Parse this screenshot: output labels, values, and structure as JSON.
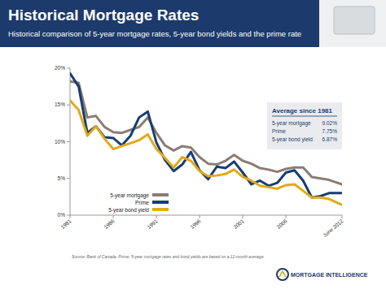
{
  "chart_data": {
    "type": "line",
    "title": "Historical Mortgage Rates",
    "subtitle": "Historical comparison of 5-year mortgage rates, 5-year bond yields and the prime rate",
    "source": "Source: Bank of Canada. Prime, 5-year mortgage rates and bond yields are based on a 12-month average.",
    "brand": "MORTGAGE INTELLIGENCE",
    "x": [
      1981,
      1982,
      1983,
      1984,
      1985,
      1986,
      1987,
      1988,
      1989,
      1990,
      1991,
      1992,
      1993,
      1994,
      1995,
      1996,
      1997,
      1998,
      1999,
      2000,
      2001,
      2002,
      2003,
      2004,
      2005,
      2006,
      2007,
      2008,
      2009,
      2010,
      2011,
      2012.5
    ],
    "series": [
      {
        "name": "5-year mortgage",
        "color": "#8b7d74",
        "values": [
          18.2,
          18.0,
          13.3,
          13.5,
          12.0,
          11.3,
          11.2,
          11.6,
          12.0,
          13.3,
          11.2,
          9.5,
          8.8,
          9.4,
          9.2,
          7.9,
          7.0,
          6.9,
          7.4,
          8.2,
          7.4,
          7.0,
          6.4,
          6.2,
          5.9,
          6.3,
          6.5,
          6.5,
          5.2,
          5.0,
          4.8,
          4.2
        ]
      },
      {
        "name": "Prime",
        "color": "#173d73",
        "values": [
          19.3,
          17.5,
          11.2,
          12.1,
          10.6,
          10.5,
          9.5,
          10.8,
          13.3,
          14.1,
          9.9,
          7.5,
          6.0,
          6.9,
          8.6,
          6.1,
          4.9,
          6.6,
          6.4,
          7.3,
          5.8,
          4.2,
          4.7,
          4.0,
          4.4,
          5.8,
          6.1,
          4.7,
          2.4,
          2.6,
          3.0,
          3.0
        ]
      },
      {
        "name": "5-year bond yield",
        "color": "#e2a919",
        "values": [
          15.6,
          14.3,
          10.8,
          12.1,
          10.4,
          9.0,
          9.4,
          9.8,
          10.2,
          11.0,
          9.0,
          7.8,
          6.5,
          7.9,
          7.4,
          6.0,
          5.3,
          5.4,
          5.6,
          6.2,
          5.2,
          4.7,
          4.0,
          3.8,
          3.6,
          4.1,
          4.2,
          3.3,
          2.4,
          2.4,
          2.2,
          1.4
        ]
      }
    ],
    "xlim": [
      1981,
      2012.5
    ],
    "xticks": [
      1981,
      1986,
      1991,
      1996,
      2001,
      2006,
      {
        "value": 2012.5,
        "label": "June 2012"
      }
    ],
    "ylim": [
      0,
      20
    ],
    "yticks": [
      {
        "value": 0,
        "label": "0%"
      },
      {
        "value": 5,
        "label": "5%"
      },
      {
        "value": 10,
        "label": "10%"
      },
      {
        "value": 15,
        "label": "15%"
      },
      {
        "value": 20,
        "label": "20%"
      }
    ],
    "grid": false,
    "legend": "bottom-left",
    "averages": {
      "title": "Average since 1981",
      "items": [
        {
          "name": "5-year mortgage",
          "label": "9.02%"
        },
        {
          "name": "Prime",
          "label": "7.75%"
        },
        {
          "name": "5-year bond yield",
          "label": "6.87%"
        }
      ]
    }
  }
}
